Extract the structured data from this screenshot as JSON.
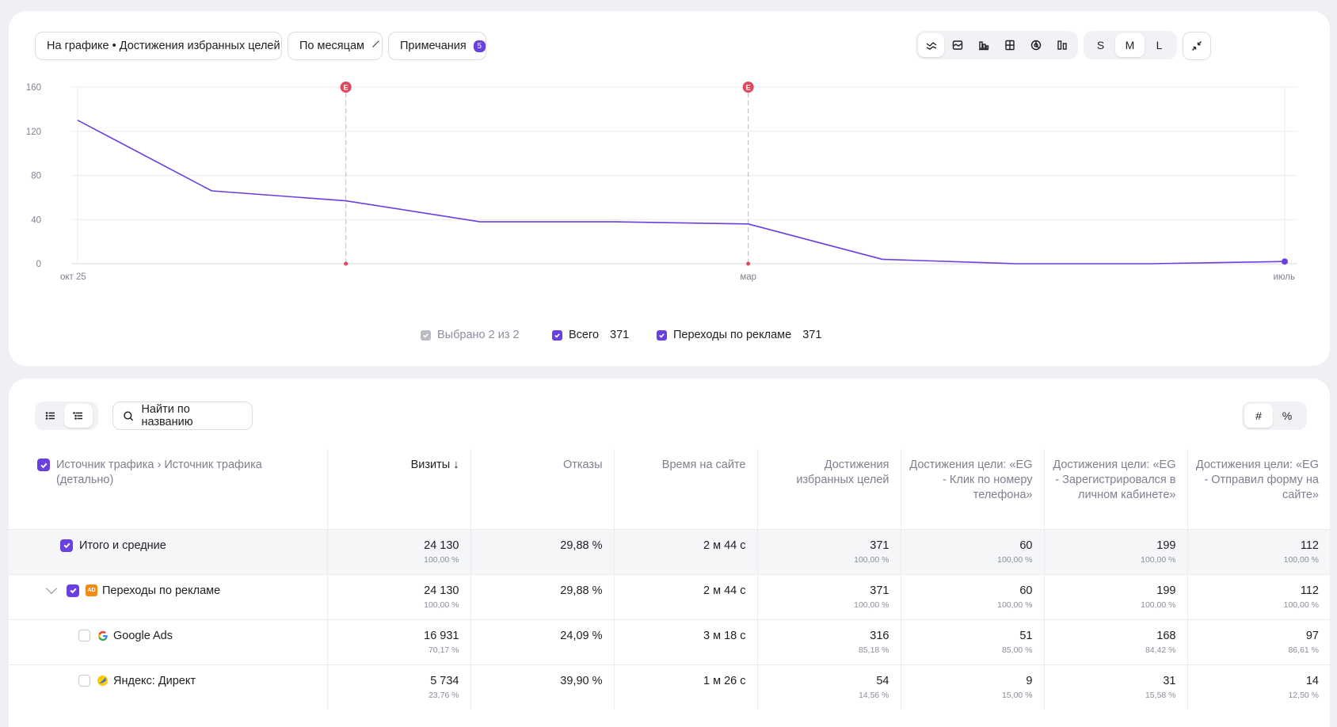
{
  "toolbar": {
    "chart_select": "На графике • Достижения избранных целей",
    "period_select": "По месяцам",
    "notes_label": "Примечания",
    "notes_count": "5",
    "size_options": [
      "S",
      "M",
      "L"
    ],
    "size_selected": "M",
    "chart_type_icons": [
      "line-chart-icon",
      "area-chart-icon",
      "bar-chart-icon",
      "stacked-chart-icon",
      "pie-chart-icon",
      "column-chart-icon"
    ]
  },
  "chart_data": {
    "type": "line",
    "x": [
      "2025-10",
      "2025-11",
      "2025-12",
      "2026-01",
      "2026-02",
      "2026-03",
      "2026-04",
      "2026-05",
      "2026-06",
      "2026-07"
    ],
    "x_tick_labels": [
      "окт 25",
      "мар",
      "июль"
    ],
    "x_tick_positions": [
      "2025-10",
      "2026-03",
      "2026-07"
    ],
    "series": [
      {
        "name": "Переходы по рекламе",
        "color": "#6a3fe0",
        "values": [
          130,
          66,
          57,
          38,
          38,
          36,
          4,
          0,
          0,
          2
        ]
      }
    ],
    "ylim": [
      0,
      160
    ],
    "yticks": [
      0,
      40,
      80,
      120,
      160
    ],
    "grid": true,
    "annotations": [
      {
        "x": "2025-12",
        "label": "E",
        "color": "#e0485c"
      },
      {
        "x": "2026-03",
        "label": "E",
        "color": "#e0485c"
      }
    ]
  },
  "legend": {
    "selected_label": "Выбрано 2 из 2",
    "items": [
      {
        "label": "Всего",
        "value": "371"
      },
      {
        "label": "Переходы по рекламе",
        "value": "371"
      }
    ]
  },
  "table": {
    "search_label": "Найти по названию",
    "unit_toggle": [
      "#",
      "%"
    ],
    "headers": {
      "source": "Источник трафика › Источник трафика (детально)",
      "visits": "Визиты ↓",
      "bounces": "Отказы",
      "time": "Время на сайте",
      "goals": "Достижения избранных целей",
      "goal1": "Достижения цели: «EG - Клик по номеру телефона»",
      "goal2": "Достижения цели: «EG - Зарегистрировался в личном кабинете»",
      "goal3": "Достижения цели: «EG - Отправил форму на сайте»"
    },
    "rows": [
      {
        "name": "Итого и средние",
        "visits": "24 130",
        "visits_pct": "100,00 %",
        "bounces": "29,88 %",
        "time": "2 м 44 с",
        "goals": "371",
        "goals_pct": "100,00 %",
        "g1": "60",
        "g1_pct": "100,00 %",
        "g2": "199",
        "g2_pct": "100,00 %",
        "g3": "112",
        "g3_pct": "100,00 %"
      },
      {
        "name": "Переходы по рекламе",
        "visits": "24 130",
        "visits_pct": "100,00 %",
        "bounces": "29,88 %",
        "time": "2 м 44 с",
        "goals": "371",
        "goals_pct": "100,00 %",
        "g1": "60",
        "g1_pct": "100,00 %",
        "g2": "199",
        "g2_pct": "100,00 %",
        "g3": "112",
        "g3_pct": "100,00 %",
        "icon": "ad-icon",
        "icon_text": "AD"
      },
      {
        "name": "Google Ads",
        "visits": "16 931",
        "visits_pct": "70,17 %",
        "bounces": "24,09 %",
        "time": "3 м 18 с",
        "goals": "316",
        "goals_pct": "85,18 %",
        "g1": "51",
        "g1_pct": "85,00 %",
        "g2": "168",
        "g2_pct": "84,42 %",
        "g3": "97",
        "g3_pct": "86,61 %",
        "icon": "google-icon"
      },
      {
        "name": "Яндекс: Директ",
        "visits": "5 734",
        "visits_pct": "23,76 %",
        "bounces": "39,90 %",
        "time": "1 м 26 с",
        "goals": "54",
        "goals_pct": "14,56 %",
        "g1": "9",
        "g1_pct": "15,00 %",
        "g2": "31",
        "g2_pct": "15,58 %",
        "g3": "14",
        "g3_pct": "12,50 %",
        "icon": "yandex-direct-icon"
      }
    ]
  }
}
